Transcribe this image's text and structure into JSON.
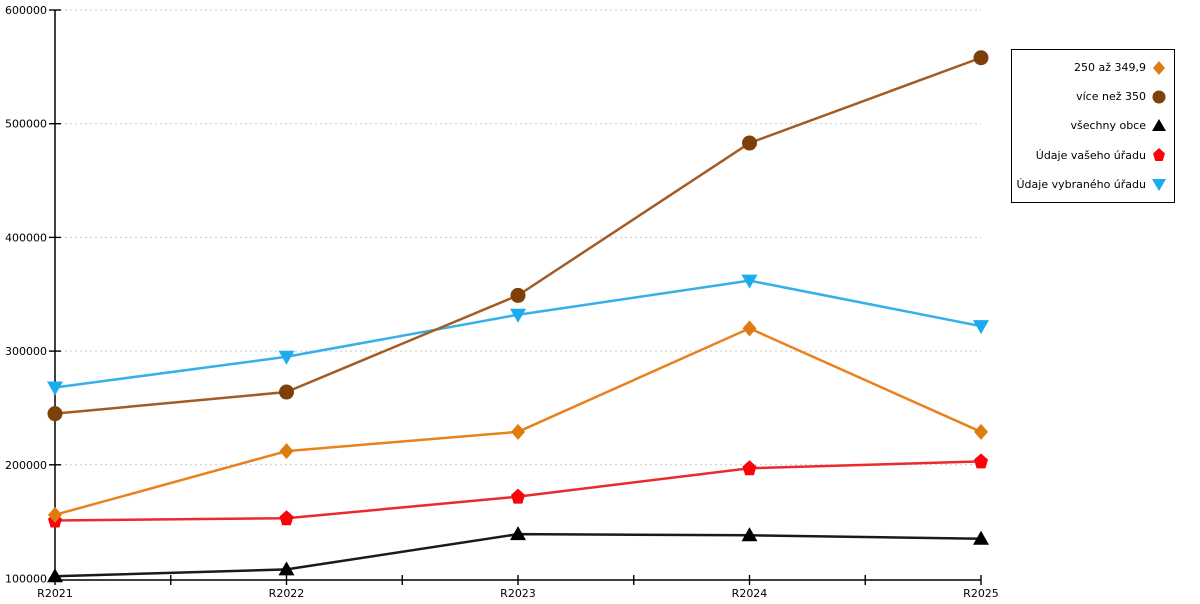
{
  "chart_data": {
    "type": "line",
    "title": "",
    "xlabel": "",
    "ylabel": "",
    "categories": [
      "R2021",
      "R2022",
      "R2023",
      "R2024",
      "R2025"
    ],
    "y_ticks": [
      100000,
      200000,
      300000,
      400000,
      500000,
      600000
    ],
    "ylim": [
      100000,
      600000
    ],
    "grid": "horizontal-dotted",
    "legend_position": "outside-top-right",
    "series": [
      {
        "name": "250 až 349,9",
        "marker": "diamond",
        "line_color": "#E8821E",
        "marker_color": "#E07B12",
        "values": [
          156000,
          212000,
          229000,
          320000,
          229000
        ]
      },
      {
        "name": "více než 350",
        "marker": "circle",
        "line_color": "#A35C25",
        "marker_color": "#7E4009",
        "values": [
          245000,
          264000,
          349000,
          483000,
          558000
        ]
      },
      {
        "name": "všechny obce",
        "marker": "triangle-up",
        "line_color": "#1A1A1A",
        "marker_color": "#000000",
        "values": [
          102000,
          108000,
          139000,
          138000,
          135000
        ]
      },
      {
        "name": "Údaje vašeho úřadu",
        "marker": "pentagon",
        "line_color": "#EB2A2E",
        "marker_color": "#FB0409",
        "values": [
          151000,
          153000,
          172000,
          197000,
          203000
        ]
      },
      {
        "name": "Údaje vybraného úřadu",
        "marker": "triangle-down",
        "line_color": "#35B0E8",
        "marker_color": "#1AACEE",
        "values": [
          268000,
          295000,
          332000,
          362000,
          322000
        ]
      }
    ],
    "draw_order": [
      2,
      3,
      0,
      4,
      1
    ]
  },
  "axes": {
    "axis_color": "#000000",
    "grid_color": "#C9C9C9",
    "tick_label_color": "#000000"
  }
}
